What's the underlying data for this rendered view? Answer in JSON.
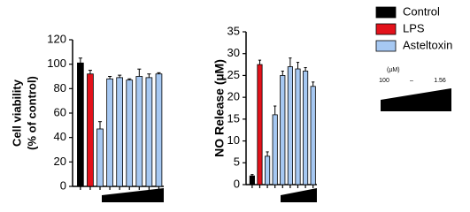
{
  "chart_data": [
    {
      "type": "bar",
      "ylabel": [
        "Cell viability",
        "(% of control)"
      ],
      "values": [
        101,
        92,
        47,
        88,
        89,
        87,
        90,
        89,
        92
      ],
      "errors": [
        4,
        3,
        6,
        2,
        2,
        1,
        6,
        3,
        1
      ],
      "colors": [
        "#000000",
        "#e3121b",
        "#a6c8f2",
        "#a6c8f2",
        "#a6c8f2",
        "#a6c8f2",
        "#a6c8f2",
        "#a6c8f2",
        "#a6c8f2"
      ],
      "ylim": [
        0,
        120
      ],
      "yticks": [
        0,
        20,
        40,
        60,
        80,
        100,
        120
      ]
    },
    {
      "type": "bar",
      "ylabel": [
        "NO Release (µM)"
      ],
      "values": [
        2,
        27.5,
        6.5,
        16,
        25,
        27,
        26.5,
        26,
        22.5
      ],
      "errors": [
        0.3,
        1,
        1,
        2,
        1,
        2,
        1.5,
        0.8,
        1
      ],
      "colors": [
        "#000000",
        "#e3121b",
        "#a6c8f2",
        "#a6c8f2",
        "#a6c8f2",
        "#a6c8f2",
        "#a6c8f2",
        "#a6c8f2",
        "#a6c8f2"
      ],
      "ylim": [
        0,
        35
      ],
      "yticks": [
        0,
        5,
        10,
        15,
        20,
        25,
        30,
        35
      ]
    }
  ],
  "legend": [
    {
      "name": "Control",
      "color": "#000000"
    },
    {
      "name": "LPS",
      "color": "#e3121b"
    },
    {
      "name": "Asteltoxin",
      "color": "#a6c8f2"
    }
  ],
  "dose": {
    "unit": "(µM)",
    "high": "100",
    "sep": "–",
    "low": "1.56"
  }
}
